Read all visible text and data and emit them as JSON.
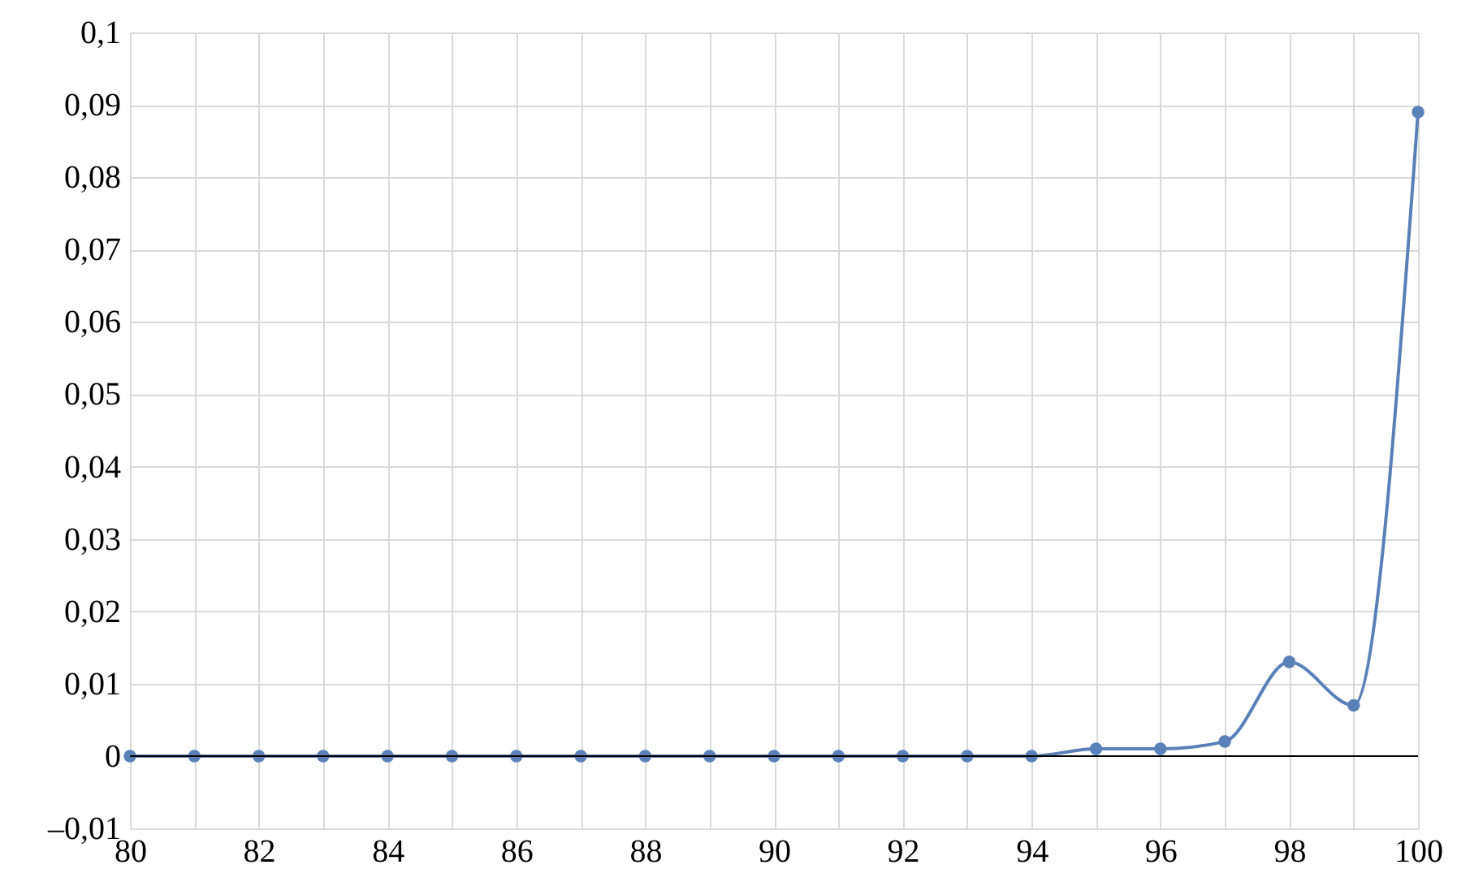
{
  "chart_data": {
    "type": "line",
    "x": [
      80,
      81,
      82,
      83,
      84,
      85,
      86,
      87,
      88,
      89,
      90,
      91,
      92,
      93,
      94,
      95,
      96,
      97,
      98,
      99,
      100
    ],
    "series": [
      {
        "color": "#5a80b8",
        "values": [
          0,
          0,
          0,
          0,
          0,
          0,
          0,
          0,
          0,
          0,
          0,
          0,
          0,
          0,
          0,
          0.001,
          0.001,
          0.002,
          0.013,
          0.007,
          0.089
        ]
      }
    ],
    "xlim": [
      80,
      100
    ],
    "xticks": [
      80,
      {
        "value": 81,
        "label": null
      },
      82,
      {
        "value": 83,
        "label": null
      },
      84,
      {
        "value": 85,
        "label": null
      },
      86,
      {
        "value": 87,
        "label": null
      },
      88,
      {
        "value": 89,
        "label": null
      },
      90,
      {
        "value": 91,
        "label": null
      },
      92,
      {
        "value": 93,
        "label": null
      },
      94,
      {
        "value": 95,
        "label": null
      },
      96,
      {
        "value": 97,
        "label": null
      },
      98,
      {
        "value": 99,
        "label": null
      },
      100
    ],
    "ylim": [
      -0.01,
      0.1
    ],
    "yticks": [
      {
        "value": -0.01,
        "label": "–0,01"
      },
      0,
      {
        "value": 0.01,
        "label": "0,01"
      },
      {
        "value": 0.02,
        "label": "0,02"
      },
      {
        "value": 0.03,
        "label": "0,03"
      },
      {
        "value": 0.04,
        "label": "0,04"
      },
      {
        "value": 0.05,
        "label": "0,05"
      },
      {
        "value": 0.06,
        "label": "0,06"
      },
      {
        "value": 0.07,
        "label": "0,07"
      },
      {
        "value": 0.08,
        "label": "0,08"
      },
      {
        "value": 0.09,
        "label": "0,09"
      },
      {
        "value": 0.1,
        "label": "0,1"
      }
    ],
    "ref_lines": [
      {
        "axis": "y",
        "value": 0,
        "color": "#000000"
      }
    ],
    "grid": true,
    "marker": "circle",
    "line_style": "solid"
  }
}
